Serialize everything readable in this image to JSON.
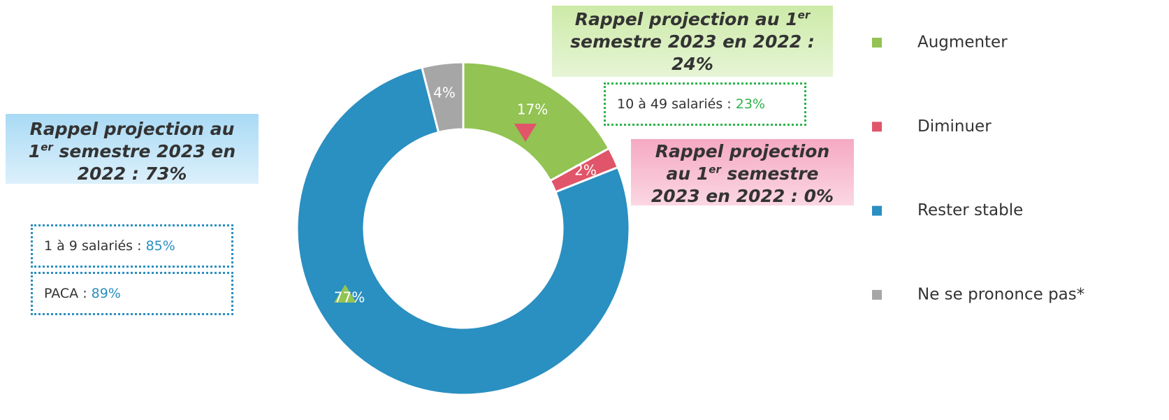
{
  "chart_data": {
    "type": "pie",
    "categories": [
      "Augmenter",
      "Diminuer",
      "Rester stable",
      "Ne se prononce pas*"
    ],
    "values": [
      17,
      2,
      77,
      4
    ],
    "value_labels": [
      "17%",
      "2%",
      "77%",
      "4%"
    ],
    "colors": [
      "#92c353",
      "#e05569",
      "#2a8fc1",
      "#a6a6a6"
    ],
    "donut": true
  },
  "notes": {
    "green": [
      "Rappel projection au 1",
      "er",
      "semestre 2023 en 2022 :",
      "24%"
    ],
    "blue": [
      "Rappel projection au",
      "1",
      "er",
      " semestre 2023 en",
      "2022 : 73%"
    ],
    "pink": [
      "Rappel projection",
      "au 1",
      "er",
      " semestre",
      "2023 en 2022 : 0%"
    ]
  },
  "boxes": [
    {
      "label": "10 à 49 salariés : ",
      "value": "23%"
    },
    {
      "label": "1 à 9 salariés : ",
      "value": "85%"
    },
    {
      "label": "PACA : ",
      "value": "89%"
    }
  ]
}
